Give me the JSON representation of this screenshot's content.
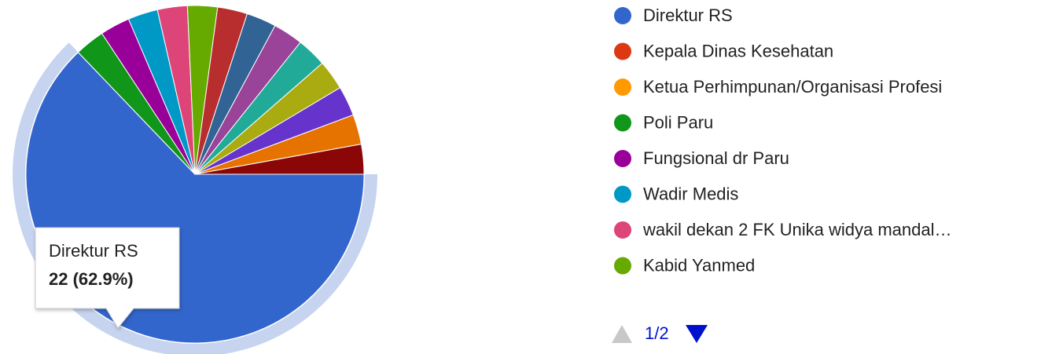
{
  "chart_data": {
    "type": "pie",
    "categories": [
      "Direktur RS",
      "Kepala Dinas Kesehatan",
      "Ketua Perhimpunan/Organisasi Profesi",
      "Poli Paru",
      "Fungsional dr Paru",
      "Wadir Medis",
      "wakil dekan 2 FK Unika widya mandal…",
      "Kabid Yanmed",
      null,
      null,
      null,
      null,
      null,
      null,
      null,
      null
    ],
    "values": [
      22,
      0,
      0,
      1,
      1,
      1,
      1,
      1,
      1,
      1,
      1,
      1,
      1,
      1,
      1,
      1
    ],
    "colors": [
      "#3366cc",
      "#dc3912",
      "#ff9900",
      "#109618",
      "#990099",
      "#0099c6",
      "#dd4477",
      "#66aa00",
      "#b82e2e",
      "#316395",
      "#994499",
      "#22aa99",
      "#aaaa11",
      "#6633cc",
      "#e67300",
      "#8b0707"
    ],
    "tooltip": {
      "value_label": "22 (62.9%)"
    },
    "legend_page": "1/2"
  }
}
